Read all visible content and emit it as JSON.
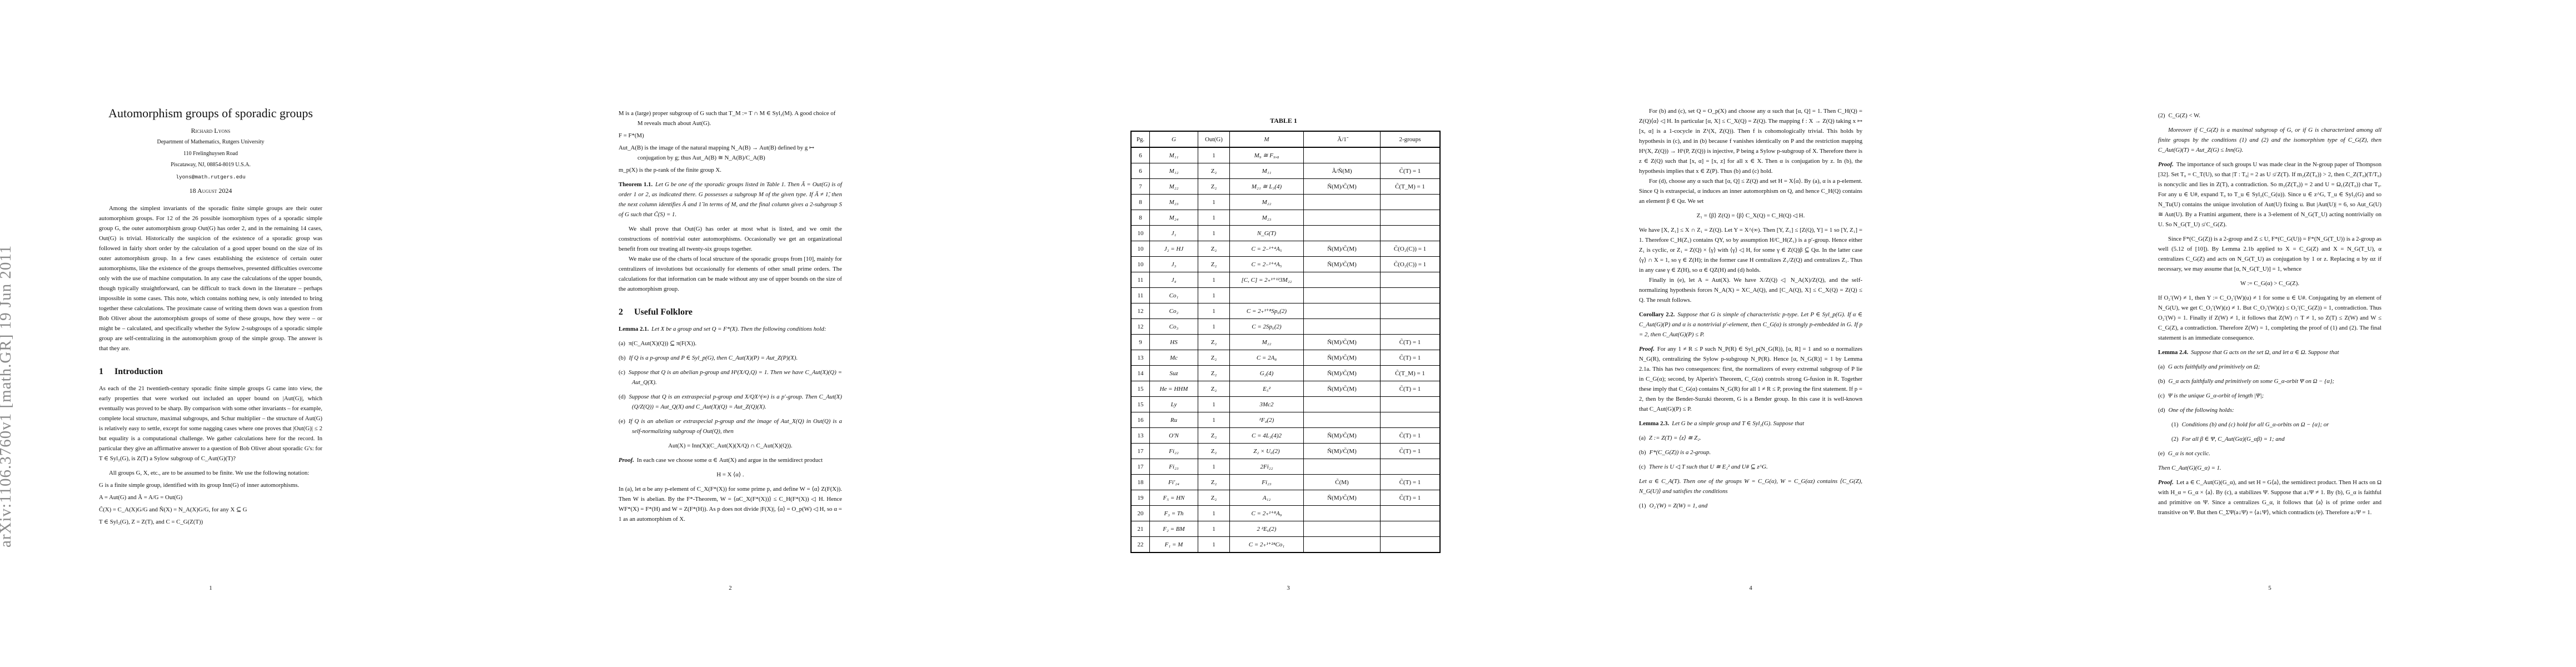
{
  "arxiv_stamp": "arXiv:1106.3760v1  [math.GR]  19 Jun 2011",
  "pages": [
    {
      "number": "1",
      "blocks": [
        {
          "type": "title",
          "text": "Automorphism groups of sporadic groups"
        },
        {
          "type": "author",
          "text": "Richard Lyons"
        },
        {
          "type": "affil",
          "text": "Department of Mathematics, Rutgers University"
        },
        {
          "type": "affil",
          "text": "110 Frelinghuysen Road"
        },
        {
          "type": "affil",
          "text": "Piscataway, NJ, 08854-8019 U.S.A."
        },
        {
          "type": "email",
          "text": "lyons@math.rutgers.edu"
        },
        {
          "type": "date",
          "text": "18 August 2024"
        },
        {
          "type": "abstract",
          "text": "Among the simplest invariants of the sporadic finite simple groups are their outer automorphism groups. For 12 of the 26 possible isomorphism types of a sporadic simple group G, the outer automorphism group Out(G) has order 2, and in the remaining 14 cases, Out(G) is trivial. Historically the suspicion of the existence of a sporadic group was followed in fairly short order by the calculation of a good upper bound on the size of its outer automorphism group. In a few cases establishing the existence of certain outer automorphisms, like the existence of the groups themselves, presented difficulties overcome only with the use of machine computation. In any case the calculations of the upper bounds, though typically straightforward, can be difficult to track down in the literature – perhaps impossible in some cases. This note, which contains nothing new, is only intended to bring together these calculations. The proximate cause of writing them down was a question from Bob Oliver about the automorphism groups of some of these groups, how they were – or might be – calculated, and specifically whether the Sylow 2-subgroups of a sporadic simple group are self-centralizing in the automorphism group of the simple group. The answer is that they are."
        },
        {
          "type": "h1",
          "num": "1",
          "text": "Introduction"
        },
        {
          "type": "p",
          "text": "As each of the 21 twentieth-century sporadic finite simple groups G came into view, the early properties that were worked out included an upper bound on |Aut(G)|, which eventually was proved to be sharp. By comparison with some other invariants – for example, complete local structure, maximal subgroups, and Schur multiplier – the structure of Aut(G) is relatively easy to settle, except for some nagging cases where one proves that |Out(G)| ≤ 2 but equality is a computational challenge. We gather calculations here for the record. In particular they give an affirmative answer to a question of Bob Oliver about sporadic G's: for T ∈ Syl₂(G), is Z(T) a Sylow subgroup of C_Aut(G)(T)?"
        },
        {
          "type": "pi",
          "gap": true,
          "text": "All groups G, X, etc., are to be assumed to be finite. We use the following notation:"
        },
        {
          "type": "def",
          "text": "G is a finite simple group, identified with its group Inn(G) of inner automorphisms."
        },
        {
          "type": "def",
          "text": "A = Aut(G) and Ã = A/G = Out(G)"
        },
        {
          "type": "def",
          "text": "C̃(X) = C_A(X)G/G and Ñ(X) = N_A(X)G/G, for any X ⊆ G"
        },
        {
          "type": "def",
          "text": "T ∈ Syl₂(G), Z = Z(T), and C = C_G(Z(T))"
        }
      ]
    },
    {
      "number": "2",
      "blocks": [
        {
          "type": "def",
          "text": "M is a (large) proper subgroup of G such that T_M := T ∩ M ∈ Syl₂(M). A good choice of M reveals much about Aut(G)."
        },
        {
          "type": "def",
          "text": "F = F*(M)"
        },
        {
          "type": "def",
          "text": "Aut_A(B) is the image of the natural mapping N_A(B) → Aut(B) defined by g ↦ conjugation by g; thus Aut_A(B) ≅ N_A(B)/C_A(B)"
        },
        {
          "type": "def",
          "text": "m_p(X) is the p-rank of the finite group X."
        },
        {
          "type": "thm",
          "label": "Theorem 1.1.",
          "text": "Let G be one of the sporadic groups listed in Table 1. Then Ã = Out(G) is of order 1 or 2, as indicated there. G possesses a subgroup M of the given type. If Ã ≠ 1̃, then the next column identifies Ã and 1̃ in terms of M, and the final column gives a 2-subgroup S of G such that C̃(S) = 1."
        },
        {
          "type": "pi",
          "text": "We shall prove that Out(G) has order at most what is listed, and we omit the constructions of nontrivial outer automorphisms. Occasionally we get an organizational benefit from our treating all twenty-six groups together."
        },
        {
          "type": "pi",
          "text": "We make use of the charts of local structure of the sporadic groups from [10], mainly for centralizers of involutions but occasionally for elements of other small prime orders. The calculations for that information can be made without any use of upper bounds on the size of the automorphism group."
        },
        {
          "type": "h1",
          "num": "2",
          "text": "Useful Folklore"
        },
        {
          "type": "thm",
          "label": "Lemma 2.1.",
          "text": "Let X be a group and set Q = F*(X). Then the following conditions hold:"
        },
        {
          "type": "item",
          "label": "(a)",
          "text": "π(C_Aut(X)(Q)) ⊆ π(F(X))."
        },
        {
          "type": "itemi",
          "label": "(b)",
          "text": "If Q is a p-group and P ∈ Syl_p(G), then C_Aut(X)(P) = Aut_Z(P)(X)."
        },
        {
          "type": "itemi",
          "label": "(c)",
          "text": "Suppose that Q is an abelian p-group and H¹(X/Q,Q) = 1. Then we have C_Aut(X)(Q) = Aut_Q(X)."
        },
        {
          "type": "itemi",
          "label": "(d)",
          "text": "Suppose that Q is an extraspecial p-group and X/QX^(∞) is a p′-group. Then C_Aut(X)(Q/Z(Q)) = Aut_Q(X) and C_Aut(X)(Q) = Aut_Z(Q)(X)."
        },
        {
          "type": "itemi",
          "label": "(e)",
          "text": "If Q is an abelian or extraspecial p-group and the image of Aut_X(Q) in Out(Q) is a self-normalizing subgroup of Out(Q), then"
        },
        {
          "type": "eq",
          "text": "Aut(X) = Inn(X)(C_Aut(X)(X/Q) ∩ C_Aut(X)(Q))."
        },
        {
          "type": "proof",
          "label": "Proof.",
          "text": "In each case we choose some α ∈ Aut(X) and argue in the semidirect product"
        },
        {
          "type": "eq",
          "text": "H = X ⟨α⟩ ."
        },
        {
          "type": "p",
          "text": "In (a), let α be any p-element of C_X(F*(X)) for some prime p, and define W = ⟨α⟩ Z(F(X)). Then W is abelian. By the F*-Theorem, W = ⟨αC_X(F*(X))⟩ ≤ C_H(F*(X)) ◁ H. Hence WF*(X) = F*(H) and W = Z(F*(H)). As p does not divide |F(X)|, ⟨α⟩ = O_p(W) ◁ H, so α = 1 as an automorphism of X."
        }
      ]
    },
    {
      "number": "3",
      "table": {
        "caption": "TABLE 1",
        "headers": [
          "Pg.",
          "G",
          "Out(G)",
          "M",
          "Ã/1̃",
          "2-groups"
        ],
        "rows": [
          [
            "6",
            "M₁₁",
            "1",
            "M₉ ≅ F₉,₈",
            "",
            ""
          ],
          [
            "6",
            "M₁₂",
            "Z₂",
            "M₁₁",
            "Ã/Ñ(M)",
            "C̃(T) = 1"
          ],
          [
            "7",
            "M₂₂",
            "Z₂",
            "M₂₁ ≅ L₃(4)",
            "Ñ(M)/C̃(M)",
            "C̃(T_M) = 1"
          ],
          [
            "8",
            "M₂₃",
            "1",
            "M₂₂",
            "",
            ""
          ],
          [
            "8",
            "M₂₄",
            "1",
            "M₂₃",
            "",
            ""
          ],
          [
            "10",
            "J₁",
            "1",
            "N_G(T)",
            "",
            ""
          ],
          [
            "10",
            "J₂ = HJ",
            "Z₂",
            "C = 2₋¹⁺⁴A₅",
            "Ñ(M)/C̃(M)",
            "C̃(O₂(C)) = 1"
          ],
          [
            "10",
            "J₃",
            "Z₂",
            "C = 2₋¹⁺⁴A₅",
            "Ñ(M)/C̃(M)",
            "C̃(O₂(C)) = 1"
          ],
          [
            "11",
            "J₄",
            "1",
            "[C, C] = 2₊¹⁺¹²3M₂₂",
            "",
            ""
          ],
          [
            "11",
            "Co₁",
            "1",
            "",
            "",
            ""
          ],
          [
            "12",
            "Co₂",
            "1",
            "C = 2₊¹⁺⁸Sp₆(2)",
            "",
            ""
          ],
          [
            "12",
            "Co₃",
            "1",
            "C = 2Sp₆(2)",
            "",
            ""
          ],
          [
            "9",
            "HS",
            "Z₂",
            "M₂₂",
            "Ñ(M)/C̃(M)",
            "C̃(T) = 1"
          ],
          [
            "13",
            "Mc",
            "Z₂",
            "C = 2A₈",
            "Ñ(M)/C̃(M)",
            "C̃(T) = 1"
          ],
          [
            "14",
            "Suz",
            "Z₂",
            "G₂(4)",
            "Ñ(M)/C̃(M)",
            "C̃(T_M) = 1"
          ],
          [
            "15",
            "He = HHM",
            "Z₂",
            "E₅²",
            "Ñ(M)/C̃(M)",
            "C̃(T) = 1"
          ],
          [
            "15",
            "Ly",
            "1",
            "3Mc2",
            "",
            ""
          ],
          [
            "16",
            "Ru",
            "1",
            "²F₄(2)",
            "",
            ""
          ],
          [
            "13",
            "O′N",
            "Z₂",
            "C = 4L₃(4)2",
            "Ñ(M)/C̃(M)",
            "C̃(T) = 1"
          ],
          [
            "17",
            "Fi₂₂",
            "Z₂",
            "Z₂ × U₆(2)",
            "Ñ(M)/C̃(M)",
            "C̃(T) = 1"
          ],
          [
            "17",
            "Fi₂₃",
            "1",
            "2Fi₂₂",
            "",
            ""
          ],
          [
            "18",
            "Fi′₂₄",
            "Z₂",
            "Fi₂₃",
            "C̃(M)",
            "C̃(T) = 1"
          ],
          [
            "19",
            "F₅ = HN",
            "Z₂",
            "A₁₂",
            "Ñ(M)/C̃(M)",
            "C̃(T) = 1"
          ],
          [
            "20",
            "F₃ = Th",
            "1",
            "C = 2₊¹⁺⁸A₉",
            "",
            ""
          ],
          [
            "21",
            "F₂ = BM",
            "1",
            "2 ²E₆(2)",
            "",
            ""
          ],
          [
            "22",
            "F₁ = M",
            "1",
            "C = 2₊¹⁺²⁴Co₁",
            "",
            ""
          ]
        ]
      }
    },
    {
      "number": "4",
      "blocks": [
        {
          "type": "pi",
          "text": "For (b) and (c), set Q = O_p(X) and choose any α such that [α, Q] = 1. Then C_H(Q) = Z(Q)⟨α⟩ ◁ H. In particular [α, X] ≤ C_X(Q) = Z(Q). The mapping f : X → Z(Q) taking x ↦ [x, α] is a 1-cocycle in Z¹(X, Z(Q)). Then f is cohomologically trivial. This holds by hypothesis in (c), and in (b) because f vanishes identically on P and the restriction mapping H¹(X, Z(Q)) → H¹(P, Z(Q)) is injective, P being a Sylow p-subgroup of X. Therefore there is z ∈ Z(Q) such that [x, α] = [x, z] for all x ∈ X. Then α is conjugation by z. In (b), the hypothesis implies that x ∈ Z(P). Thus (b) and (c) hold."
        },
        {
          "type": "pi",
          "text": "For (d), choose any α such that [α, Q] ≤ Z(Q) and set H = X⟨α⟩. By (a), α is a p-element. Since Q is extraspecial, α induces an inner automorphism on Q, and hence C_H(Q) contains an element β ∈ Qα. We set"
        },
        {
          "type": "eq",
          "text": "Z₁ = ⟨β⟩ Z(Q) = ⟨β⟩ C_X(Q) = C_H(Q) ◁ H."
        },
        {
          "type": "p",
          "text": "We have [X, Z₁] ≤ X ∩ Z₁ = Z(Q). Let Y = X^(∞). Then [Y, Z₁] ≤ [Z(Q), Y] = 1 so [Y, Z₁] = 1. Therefore C_H(Z₁) contains QY, so by assumption H/C_H(Z₁) is a p′-group. Hence either Z₁ is cyclic, or Z₁ = Z(Q) × ⟨γ⟩ with ⟨γ⟩ ◁ H, for some γ ∈ Z(Q)β ⊆ Qα. In the latter case ⟨γ⟩ ∩ X = 1, so γ ∈ Z(H); in the former case H centralizes Z₁/Z(Q) and centralizes Z₁. Thus in any case γ ∈ Z(H), so α ∈ QZ(H) and (d) holds."
        },
        {
          "type": "pi",
          "text": "Finally in (e), let A = Aut(X). We have X/Z(Q) ◁ N_A(X)/Z(Q), and the self-normalizing hypothesis forces N_A(X) = XC_A(Q), and [C_A(Q), X] ≤ C_X(Q) = Z(Q) ≤ Q. The result follows."
        },
        {
          "type": "thm",
          "label": "Corollary 2.2.",
          "text": "Suppose that G is simple of characteristic p-type. Let P ∈ Syl_p(G). If α ∈ C_Aut(G)(P) and α is a nontrivial p′-element, then C_G(α) is strongly p-embedded in G. If p = 2, then C_Aut(G)(P) ≤ P."
        },
        {
          "type": "proof",
          "label": "Proof.",
          "text": "For any 1 ≠ R ≤ P such N_P(R) ∈ Syl_p(N_G(R)), [α, R] = 1 and so α normalizes N_G(R), centralizing the Sylow p-subgroup N_P(R). Hence [α, N_G(R)] = 1 by Lemma 2.1a. This has two consequences: first, the normalizers of every extremal subgroup of P lie in C_G(α); second, by Alperin's Theorem, C_G(α) controls strong G-fusion in R. Together these imply that C_G(α) contains N_G(R) for all 1 ≠ R ≤ P, proving the first statement. If p = 2, then by the Bender-Suzuki theorem, G is a Bender group. In this case it is well-known that C_Aut(G)(P) ≤ P."
        },
        {
          "type": "thm",
          "label": "Lemma 2.3.",
          "text": "Let G be a simple group and T ∈ Syl₂(G). Suppose that"
        },
        {
          "type": "itemi",
          "label": "(a)",
          "text": "Z := Z(T) = ⟨z⟩ ≅ Z₂."
        },
        {
          "type": "itemi",
          "label": "(b)",
          "text": "F*(C_G(Z)) is a 2-group."
        },
        {
          "type": "itemi",
          "label": "(c)",
          "text": "There is U ◁ T such that U ≅ E₂² and U# ⊆ z^G."
        },
        {
          "type": "pit",
          "text": "Let α ∈ C_A(T). Then one of the groups W = C_G(α), W = C_G(αz) contains ⟨C_G(Z), N_G(U)⟩ and satisfies the conditions"
        },
        {
          "type": "itemi",
          "label": "(1)",
          "text": "O₂′(W) = Z(W) = 1, and"
        }
      ]
    },
    {
      "number": "5",
      "blocks": [
        {
          "type": "item",
          "label": "(2)",
          "text": "C_G(Z) < W."
        },
        {
          "type": "pit",
          "indent": true,
          "text": "Moreover if C_G(Z) is a maximal subgroup of G, or if G is characterized among all finite groups by the conditions (1) and (2) and the isomorphism type of C_G(Z), then C_Aut(G)(T) = Aut_Z(G) ≤ Inn(G)."
        },
        {
          "type": "proof",
          "label": "Proof.",
          "text": "The importance of such groups U was made clear in the N-group paper of Thompson [32]. Set T₀ = C_T(U), so that |T : T₀| = 2 as U ≰ Z(T). If m₂(Z(T₀)) > 2, then C_Z(T₀)(T/T₀) is noncyclic and lies in Z(T), a contradiction. So m₂(Z(T₀)) = 2 and U = Ω₁(Z(T₀)) char T₀. For any u ∈ U#, expand T₀ to T_u ∈ Syl₂(C_G(u)). Since u ∈ z^G, T_u ∈ Syl₂(G) and so N_Tu(U) contains the unique involution of Aut(U) fixing u. But |Aut(U)| = 6, so Aut_G(U) ≅ Aut(U). By a Frattini argument, there is a 3-element of N_G(T_U) acting nontrivially on U. So N_G(T_U) ≰ C_G(Z)."
        },
        {
          "type": "pi",
          "text": "Since F*(C_G(Z)) is a 2-group and Z ≤ U, F*(C_G(U)) = F*(N_G(T_U)) is a 2-group as well (5.12 of [10]). By Lemma 2.1b applied to X = C_G(Z) and X = N_G(T_U), α centralizes C_G(Z) and acts on N_G(T_U) as conjugation by 1 or z. Replacing α by αz if necessary, we may assume that [α, N_G(T_U)] = 1, whence"
        },
        {
          "type": "eq",
          "text": "W := C_G(α) > C_G(Z)."
        },
        {
          "type": "p",
          "text": "If O₂′(W) ≠ 1, then Y := C_O₂′(W)(u) ≠ 1 for some u ∈ U#. Conjugating by an element of N_G(U), we get C_O₂′(W)(z) ≠ 1. But C_O₂′(W)(z) ≤ O₂′(C_G(Z)) = 1, contradiction. Thus O₂′(W) = 1. Finally if Z(W) ≠ 1, it follows that Z(W) ∩ T ≠ 1, so Z(T) ≤ Z(W) and W ≤ C_G(Z), a contradiction. Therefore Z(W) = 1, completing the proof of (1) and (2). The final statement is an immediate consequence."
        },
        {
          "type": "thm",
          "label": "Lemma 2.4.",
          "text": "Suppose that G acts on the set Ω, and let α ∈ Ω. Suppose that"
        },
        {
          "type": "itemi",
          "label": "(a)",
          "text": "G acts faithfully and primitively on Ω;"
        },
        {
          "type": "itemi",
          "label": "(b)",
          "text": "G_α acts faithfully and primitively on some G_α-orbit Ψ on Ω − {α};"
        },
        {
          "type": "itemi",
          "label": "(c)",
          "text": "Ψ is the unique G_α-orbit of length |Ψ|;"
        },
        {
          "type": "itemi",
          "label": "(d)",
          "text": "One of the following holds:"
        },
        {
          "type": "subitem",
          "label": "(1)",
          "text": "Conditions (b) and (c) hold for all G_α-orbits on Ω − {α}; or"
        },
        {
          "type": "subitem",
          "label": "(2)",
          "text": "For all β ∈ Ψ, C_Aut(Gα)(G_αβ) = 1; and"
        },
        {
          "type": "itemi",
          "label": "(e)",
          "text": "G_α is not cyclic."
        },
        {
          "type": "pit",
          "text": "Then C_Aut(G)(G_α) = 1."
        },
        {
          "type": "proof",
          "label": "Proof.",
          "text": "Let a ∈ C_Aut(G)(G_α), and set H = G⟨a⟩, the semidirect product. Then H acts on Ω with H_α = G_α × ⟨a⟩. By (c), a stabilizes Ψ. Suppose that a↓Ψ ≠ 1. By (b), G_α is faithful and primitive on Ψ. Since a centralizes G_α, it follows that ⟨a⟩ is of prime order and transitive on Ψ. But then C_ΣΨ(a↓Ψ) = ⟨a↓Ψ⟩, which contradicts (e). Therefore a↓Ψ = 1."
        }
      ]
    }
  ]
}
